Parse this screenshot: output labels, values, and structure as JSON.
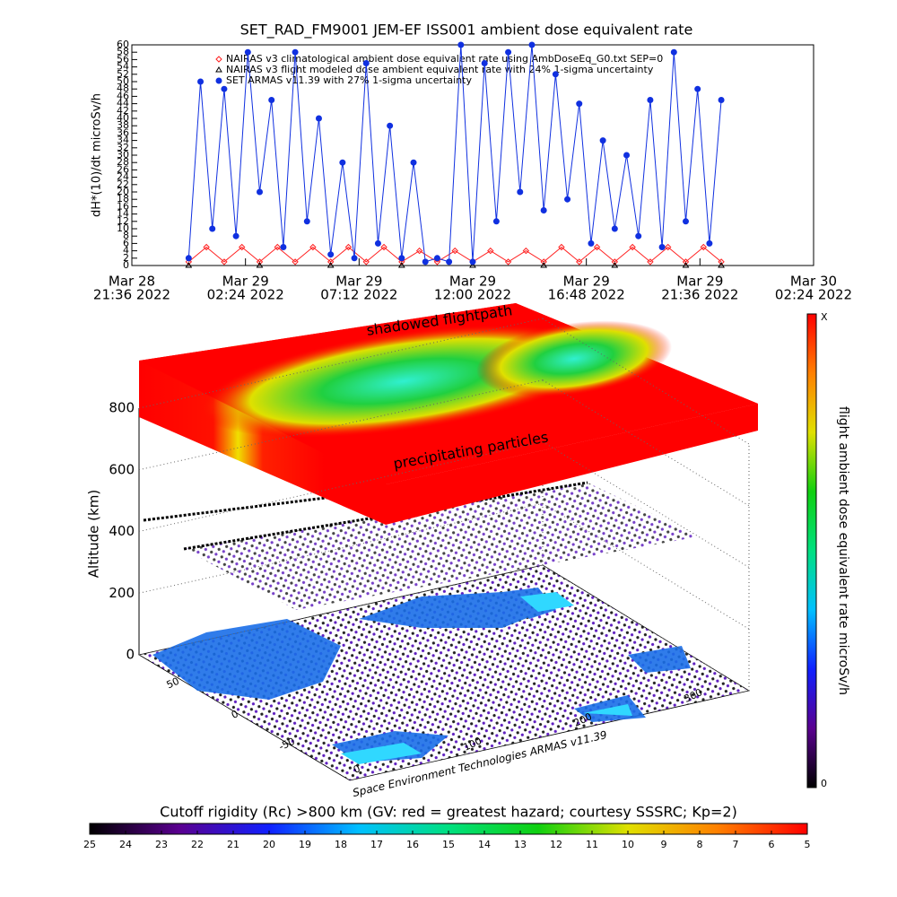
{
  "chart_data": [
    {
      "type": "line",
      "title": "SET_RAD_FM9001  JEM-EF ISS001 ambient dose equivalent rate",
      "ylabel": "dH*(10)/dt microSv/h",
      "ylim": [
        0,
        60
      ],
      "yticks": [
        0,
        2,
        4,
        6,
        8,
        10,
        12,
        14,
        16,
        18,
        20,
        22,
        24,
        26,
        28,
        30,
        32,
        34,
        36,
        38,
        40,
        42,
        44,
        46,
        48,
        50,
        52,
        54,
        56,
        58,
        60
      ],
      "xlim": [
        "2022-03-28T21:36",
        "2022-03-30T02:24"
      ],
      "xticks": [
        {
          "value": "2022-03-28T21:36",
          "label": [
            "Mar 28",
            "21:36 2022"
          ]
        },
        {
          "value": "2022-03-29T02:24",
          "label": [
            "Mar 29",
            "02:24 2022"
          ]
        },
        {
          "value": "2022-03-29T07:12",
          "label": [
            "Mar 29",
            "07:12 2022"
          ]
        },
        {
          "value": "2022-03-29T12:00",
          "label": [
            "Mar 29",
            "12:00 2022"
          ]
        },
        {
          "value": "2022-03-29T16:48",
          "label": [
            "Mar 29",
            "16:48 2022"
          ]
        },
        {
          "value": "2022-03-29T21:36",
          "label": [
            "Mar 29",
            "21:36 2022"
          ]
        },
        {
          "value": "2022-03-30T02:24",
          "label": [
            "Mar 30",
            "02:24 2022"
          ]
        }
      ],
      "series": [
        {
          "name": "NAIRAS v3 climatological ambient dose equivalent rate using AmbDoseEq_G0.txt  SEP=0",
          "color": "#ff2020",
          "marker": "diamond",
          "x": [
            "2022-03-29T00:00",
            "2022-03-29T00:45",
            "2022-03-29T01:30",
            "2022-03-29T02:15",
            "2022-03-29T03:00",
            "2022-03-29T03:45",
            "2022-03-29T04:30",
            "2022-03-29T05:15",
            "2022-03-29T06:00",
            "2022-03-29T06:45",
            "2022-03-29T07:30",
            "2022-03-29T08:15",
            "2022-03-29T09:00",
            "2022-03-29T09:45",
            "2022-03-29T10:30",
            "2022-03-29T11:15",
            "2022-03-29T12:00",
            "2022-03-29T12:45",
            "2022-03-29T13:30",
            "2022-03-29T14:15",
            "2022-03-29T15:00",
            "2022-03-29T15:45",
            "2022-03-29T16:30",
            "2022-03-29T17:15",
            "2022-03-29T18:00",
            "2022-03-29T18:45",
            "2022-03-29T19:30",
            "2022-03-29T20:15",
            "2022-03-29T21:00",
            "2022-03-29T21:45",
            "2022-03-29T22:30"
          ],
          "values": [
            1,
            5,
            1,
            5,
            1,
            5,
            1,
            5,
            1,
            5,
            1,
            5,
            1,
            4,
            1,
            4,
            1,
            4,
            1,
            4,
            1,
            5,
            1,
            5,
            1,
            5,
            1,
            5,
            1,
            5,
            1
          ]
        },
        {
          "name": "NAIRAS v3 flight modeled dose ambient equivalent rate with 24% 1-sigma uncertainty",
          "color": "#000000",
          "marker": "triangle",
          "x": [
            "2022-03-29T00:00",
            "2022-03-29T03:00",
            "2022-03-29T06:00",
            "2022-03-29T09:00",
            "2022-03-29T12:00",
            "2022-03-29T15:00",
            "2022-03-29T18:00",
            "2022-03-29T21:00",
            "2022-03-29T22:30"
          ],
          "values": [
            0,
            0,
            0,
            0,
            0,
            0,
            0,
            0,
            0
          ]
        },
        {
          "name": "SET ARMAS v11.39 with 27% 1-sigma uncertainty",
          "color": "#1030e0",
          "marker": "circle",
          "x": [
            "2022-03-29T00:00",
            "2022-03-29T00:30",
            "2022-03-29T01:00",
            "2022-03-29T01:30",
            "2022-03-29T02:00",
            "2022-03-29T02:30",
            "2022-03-29T03:00",
            "2022-03-29T03:30",
            "2022-03-29T04:00",
            "2022-03-29T04:30",
            "2022-03-29T05:00",
            "2022-03-29T05:30",
            "2022-03-29T06:00",
            "2022-03-29T06:30",
            "2022-03-29T07:00",
            "2022-03-29T07:30",
            "2022-03-29T08:00",
            "2022-03-29T08:30",
            "2022-03-29T09:00",
            "2022-03-29T09:30",
            "2022-03-29T10:00",
            "2022-03-29T10:30",
            "2022-03-29T11:00",
            "2022-03-29T11:30",
            "2022-03-29T12:00",
            "2022-03-29T12:30",
            "2022-03-29T13:00",
            "2022-03-29T13:30",
            "2022-03-29T14:00",
            "2022-03-29T14:30",
            "2022-03-29T15:00",
            "2022-03-29T15:30",
            "2022-03-29T16:00",
            "2022-03-29T16:30",
            "2022-03-29T17:00",
            "2022-03-29T17:30",
            "2022-03-29T18:00",
            "2022-03-29T18:30",
            "2022-03-29T19:00",
            "2022-03-29T19:30",
            "2022-03-29T20:00",
            "2022-03-29T20:30",
            "2022-03-29T21:00",
            "2022-03-29T21:30",
            "2022-03-29T22:00",
            "2022-03-29T22:30"
          ],
          "values": [
            2,
            50,
            10,
            48,
            8,
            58,
            20,
            45,
            5,
            58,
            12,
            40,
            3,
            28,
            2,
            55,
            6,
            38,
            2,
            28,
            1,
            2,
            1,
            60,
            1,
            55,
            12,
            58,
            20,
            60,
            15,
            52,
            18,
            44,
            6,
            34,
            10,
            30,
            8,
            45,
            5,
            58,
            12,
            48,
            6,
            45
          ]
        }
      ]
    },
    {
      "type": "surface3d",
      "zlabel": "Altitude (km)",
      "zlim": [
        0,
        800
      ],
      "zticks": [
        0,
        200,
        400,
        600,
        800
      ],
      "yticks": [
        -50,
        0,
        50
      ],
      "xticks": [
        0,
        100,
        200,
        300
      ],
      "annotations": [
        "shadowed flightpath",
        "precipitating particles"
      ],
      "credit": "Space Environment Technologies ARMAS v11.39"
    },
    {
      "type": "colorbar",
      "label": "flight ambient dose equivalent rate microSv/h",
      "top_label": "X",
      "ticks": [
        0
      ],
      "colors": [
        "#000000",
        "#5a0090",
        "#1020ff",
        "#00c0ff",
        "#00e080",
        "#10d010",
        "#e0e000",
        "#ff8000",
        "#ff0000"
      ]
    },
    {
      "type": "colorbar",
      "title": "Cutoff rigidity (Rc) >800 km (GV: red = greatest hazard; courtesy SSSRC; Kp=2)",
      "xlim": [
        25,
        5
      ],
      "ticks": [
        25,
        24,
        23,
        22,
        21,
        20,
        19,
        18,
        17,
        16,
        15,
        14,
        13,
        12,
        11,
        10,
        9,
        8,
        7,
        6,
        5
      ],
      "colors": [
        "#000000",
        "#5a0090",
        "#1020ff",
        "#00c0ff",
        "#00e080",
        "#10d010",
        "#e0e000",
        "#ff8000",
        "#ff0000"
      ]
    }
  ]
}
